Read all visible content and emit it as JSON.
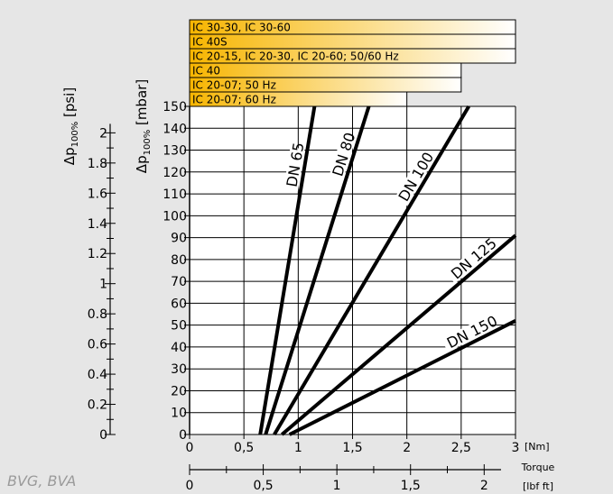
{
  "chart_data": {
    "type": "line",
    "xlabel": "Torque",
    "x_unit": "[Nm]",
    "x2_unit": "[lbf ft]",
    "ylabel": "Δp100% [mbar]",
    "y2label": "Δp100% [psi]",
    "xlim": [
      0,
      3
    ],
    "ylim": [
      0,
      150
    ],
    "x_ticks": [
      "0",
      "0,5",
      "1",
      "1,5",
      "2",
      "2,5",
      "3"
    ],
    "y_ticks": [
      "0",
      "10",
      "20",
      "30",
      "40",
      "50",
      "60",
      "70",
      "80",
      "90",
      "100",
      "110",
      "120",
      "130",
      "140",
      "150"
    ],
    "x2_ticks": [
      "0",
      "0,5",
      "1",
      "1,5",
      "2"
    ],
    "x2_values": [
      0,
      0.5,
      1,
      1.5,
      2
    ],
    "psi_ticks": [
      "0",
      "0.2",
      "0.4",
      "0.6",
      "0.8",
      "1",
      "1.2",
      "1.4",
      "1.6",
      "1.8",
      "2"
    ],
    "psi_values": [
      0,
      0.2,
      0.4,
      0.6,
      0.8,
      1,
      1.2,
      1.4,
      1.6,
      1.8,
      2
    ],
    "series": [
      {
        "name": "DN 65",
        "x": [
          0.65,
          1.15
        ],
        "y": [
          0,
          150
        ]
      },
      {
        "name": "DN 80",
        "x": [
          0.7,
          1.65
        ],
        "y": [
          0,
          150
        ]
      },
      {
        "name": "DN 100",
        "x": [
          0.78,
          2.57
        ],
        "y": [
          0,
          150
        ]
      },
      {
        "name": "DN 125",
        "x": [
          0.85,
          3.0
        ],
        "y": [
          0,
          91
        ]
      },
      {
        "name": "DN 150",
        "x": [
          0.92,
          3.0
        ],
        "y": [
          0,
          52
        ]
      }
    ],
    "ranges": [
      {
        "label": "IC 30-30, IC 30-60",
        "max_torque": 3.0
      },
      {
        "label": "IC 40S",
        "max_torque": 3.0
      },
      {
        "label": "IC 20-15, IC 20-30, IC 20-60; 50/60 Hz",
        "max_torque": 3.0
      },
      {
        "label": "IC 40",
        "max_torque": 2.5
      },
      {
        "label": "IC 20-07; 50 Hz",
        "max_torque": 2.5
      },
      {
        "label": "IC 20-07; 60 Hz",
        "max_torque": 2.0
      }
    ]
  },
  "product_label": "BVG, BVA",
  "colors": {
    "bar_from": "#f7b500",
    "bar_to": "#ffffff",
    "background": "#e6e6e6"
  }
}
